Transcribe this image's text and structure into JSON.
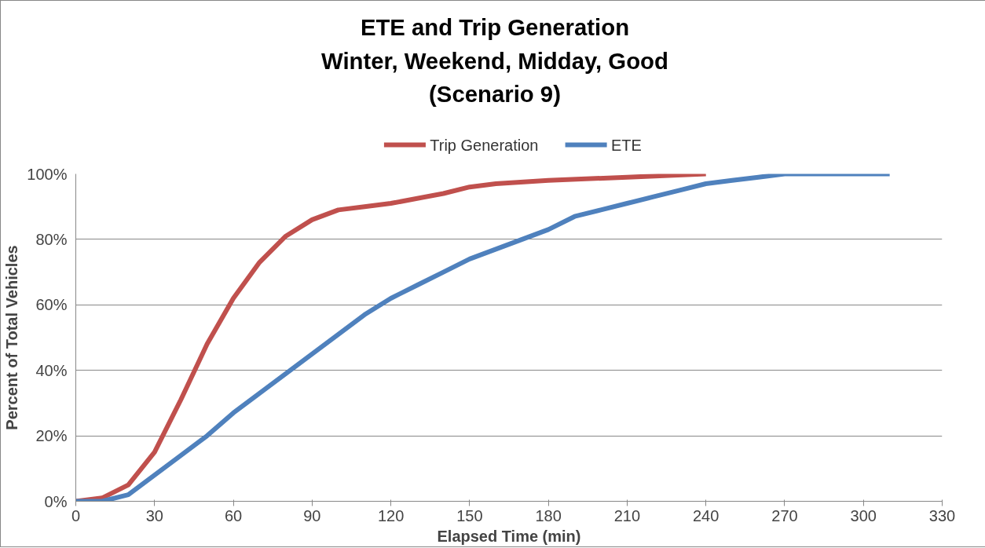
{
  "chart_data": {
    "type": "line",
    "title": "ETE and Trip Generation\nWinter, Weekend, Midday, Good\n(Scenario 9)",
    "xlabel": "Elapsed Time (min)",
    "ylabel": "Percent of Total Vehicles",
    "series": [
      {
        "name": "Trip Generation",
        "color": "#c0504d",
        "x": [
          0,
          10,
          20,
          30,
          40,
          50,
          60,
          70,
          80,
          90,
          100,
          110,
          120,
          140,
          150,
          160,
          180,
          210,
          240
        ],
        "values": [
          0,
          1,
          5,
          15,
          31,
          48,
          62,
          73,
          81,
          86,
          89,
          90,
          91,
          94,
          96,
          97,
          98,
          99,
          100
        ]
      },
      {
        "name": "ETE",
        "color": "#4f81bd",
        "x": [
          0,
          10,
          20,
          30,
          40,
          50,
          60,
          70,
          80,
          90,
          100,
          110,
          120,
          130,
          140,
          150,
          160,
          170,
          180,
          190,
          200,
          210,
          220,
          230,
          240,
          250,
          260,
          270,
          310
        ],
        "values": [
          0,
          0,
          2,
          8,
          14,
          20,
          27,
          33,
          39,
          45,
          51,
          57,
          62,
          66,
          70,
          74,
          77,
          80,
          83,
          87,
          89,
          91,
          93,
          95,
          97,
          98,
          99,
          100,
          100
        ]
      }
    ],
    "xlim": [
      0,
      330
    ],
    "xticks": [
      0,
      30,
      60,
      90,
      120,
      150,
      180,
      210,
      240,
      270,
      300,
      330
    ],
    "ylim": [
      0,
      100
    ],
    "yticks": [
      {
        "value": 0,
        "label": "0%"
      },
      {
        "value": 20,
        "label": "20%"
      },
      {
        "value": 40,
        "label": "40%"
      },
      {
        "value": 60,
        "label": "60%"
      },
      {
        "value": 80,
        "label": "80%"
      },
      {
        "value": 100,
        "label": "100%"
      }
    ],
    "grid": "y",
    "legend": "top",
    "marker": "none",
    "line_style": "solid"
  }
}
